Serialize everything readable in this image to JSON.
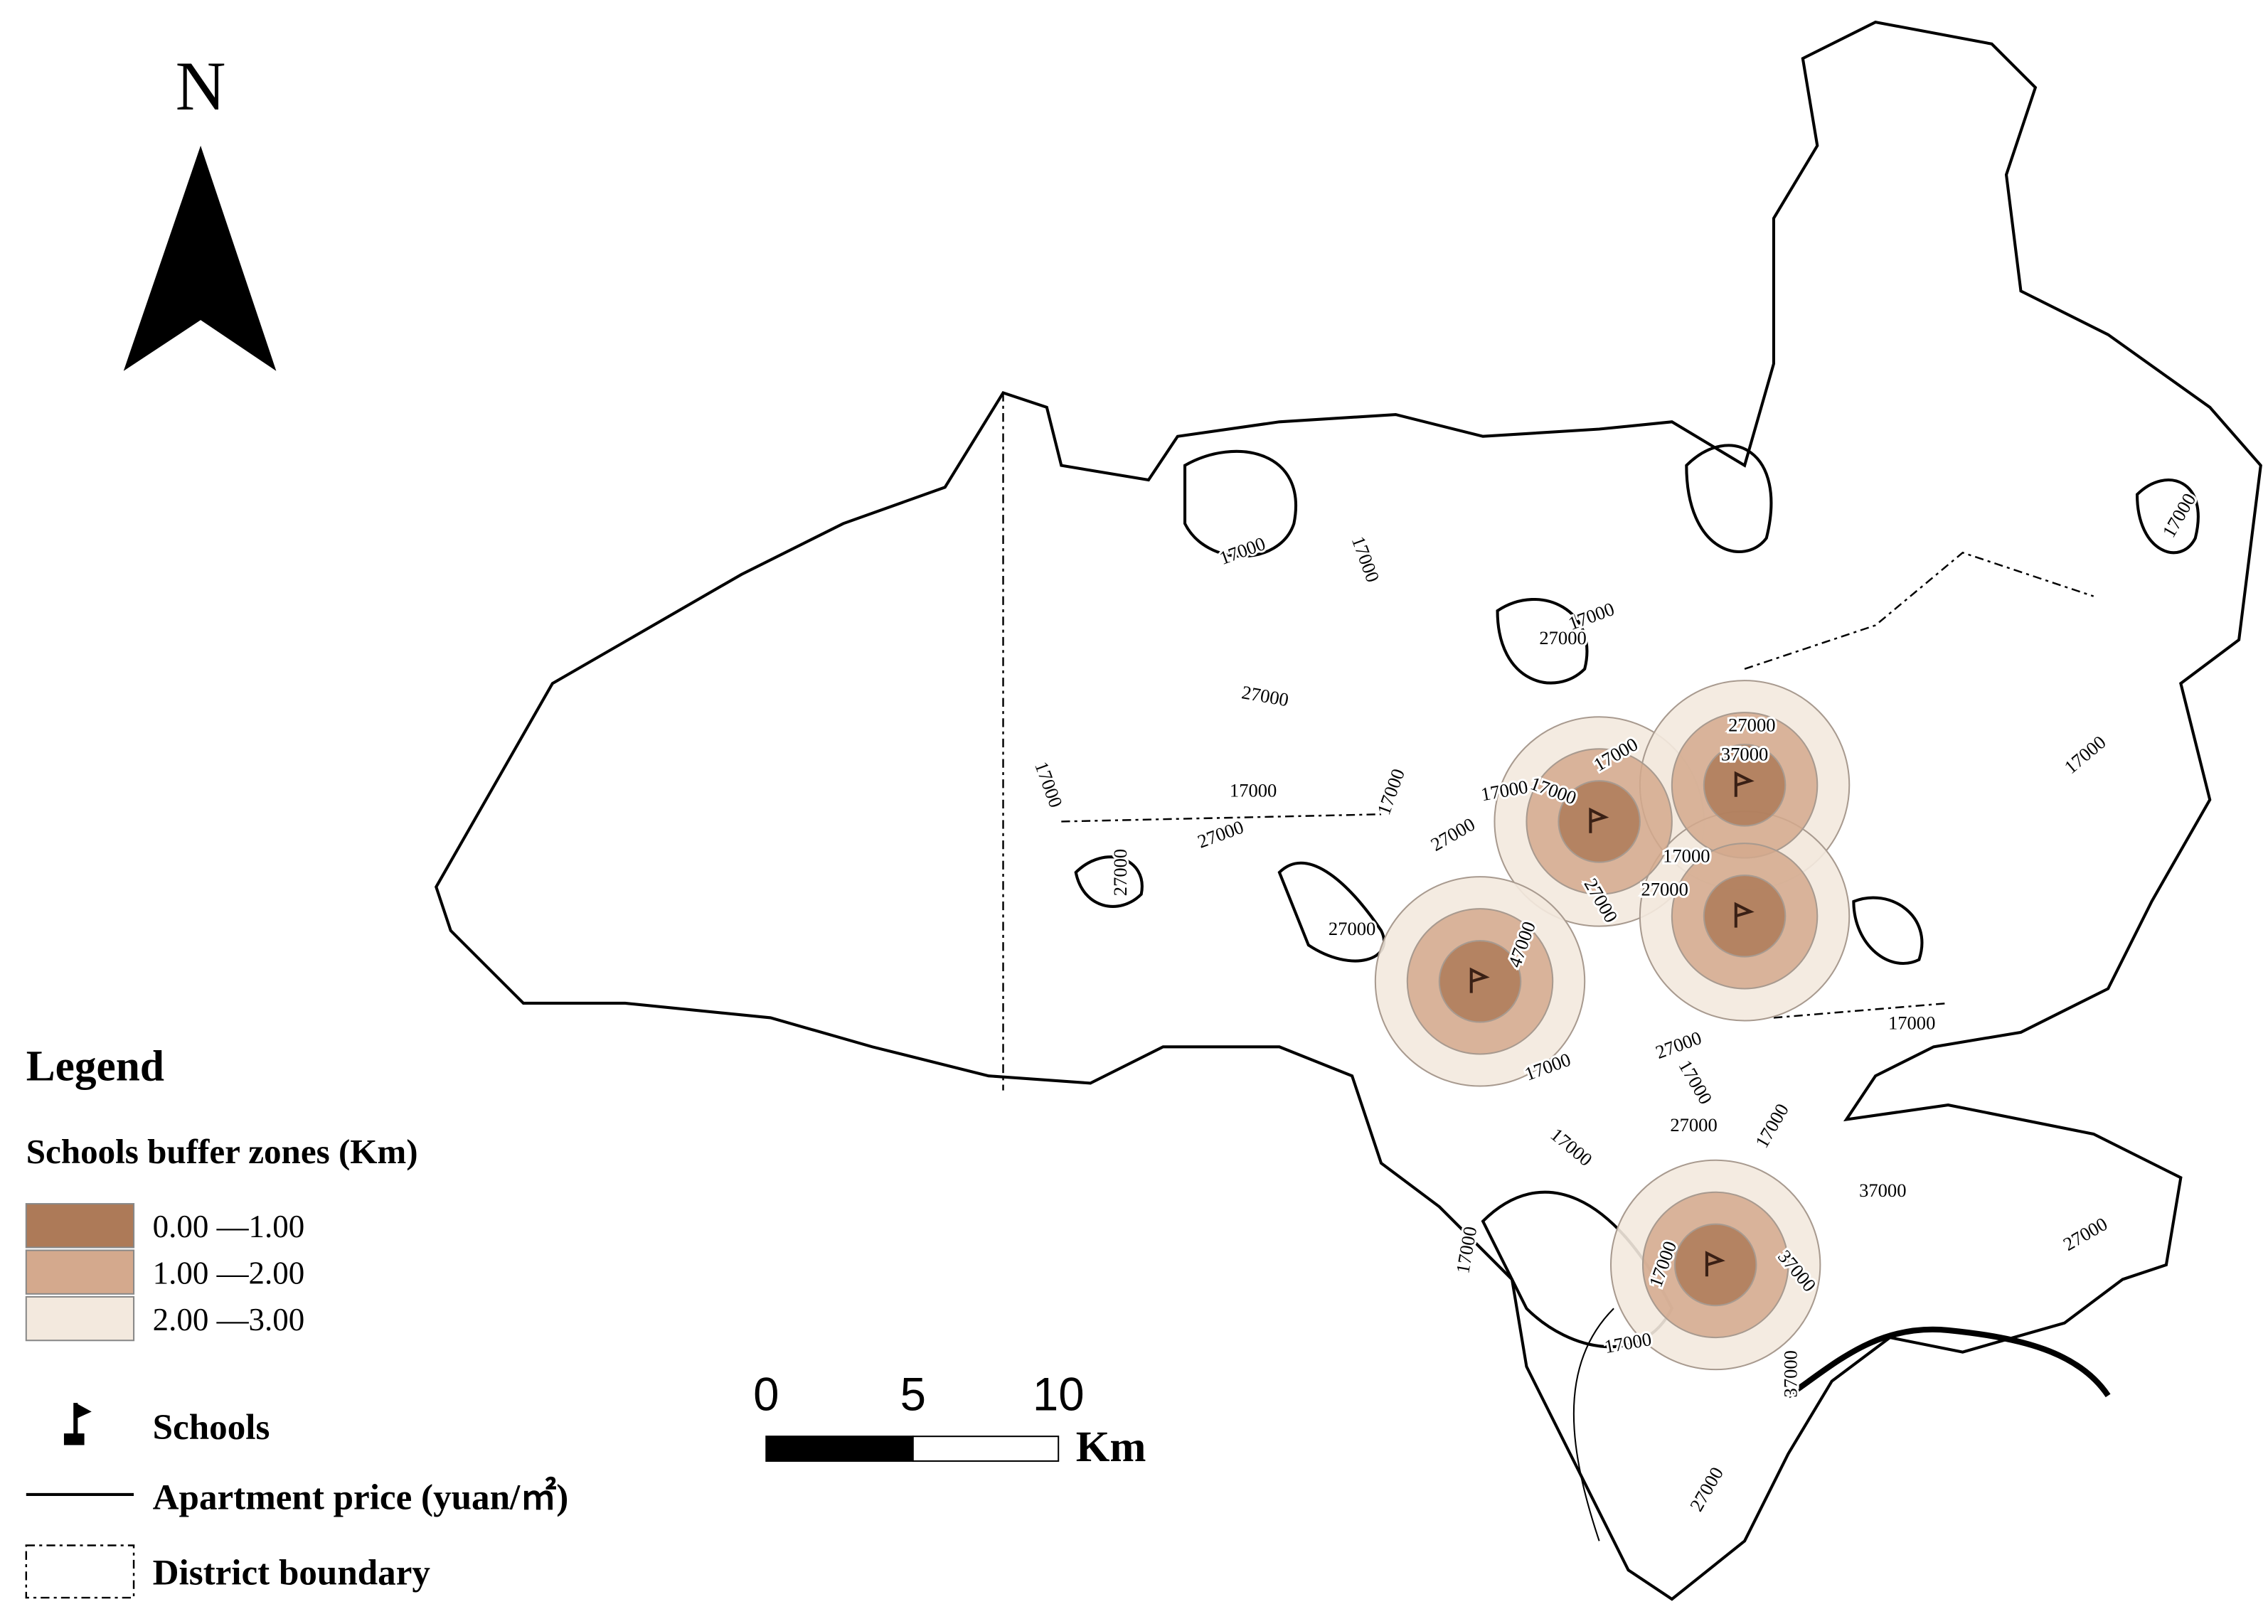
{
  "north": "N",
  "legend": {
    "title": "Legend",
    "buffer_title": "Schools buffer zones (Km)",
    "buffer_classes": [
      "0.00 —1.00",
      "1.00 —2.00",
      "2.00 —3.00"
    ],
    "buffer_colors": [
      "#ad7a58",
      "#d4a98d",
      "#f3e9de"
    ],
    "schools": "Schools",
    "apartment_price": "Apartment price (yuan/㎡)",
    "district_boundary": "District boundary"
  },
  "scale_bar": {
    "labels": [
      "0",
      "5",
      "10"
    ],
    "unit": "Km"
  },
  "contour_labels": [
    "17000",
    "17000",
    "17000",
    "27000",
    "27000",
    "17000",
    "17000",
    "27000",
    "27000",
    "17000",
    "27000",
    "17000",
    "17000",
    "17000",
    "27000",
    "37000",
    "17000",
    "27000",
    "27000",
    "27000",
    "47000",
    "17000",
    "17000",
    "17000",
    "27000",
    "17000",
    "17000",
    "17000",
    "27000",
    "17000",
    "37000",
    "27000",
    "17000",
    "17000",
    "37000",
    "17000",
    "37000",
    "27000"
  ]
}
